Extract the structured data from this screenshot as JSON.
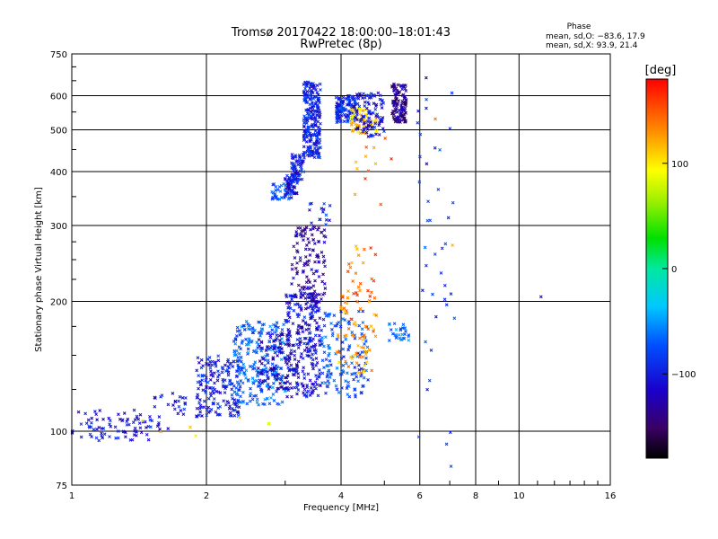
{
  "chart_data": {
    "type": "scatter",
    "title": "Tromsø 20170422 18:00:00–18:01:43",
    "subtitle": "RwPretec (8p)",
    "xlabel": "Frequency [MHz]",
    "ylabel": "Stationary phase Virtual Height [km]",
    "x_scale": "log",
    "y_scale": "log",
    "xlim": [
      1,
      16
    ],
    "ylim": [
      75,
      750
    ],
    "x_ticks": [
      1,
      2,
      4,
      6,
      8,
      10,
      16
    ],
    "x_tick_labels": [
      "1",
      "2",
      "4",
      "6",
      "8",
      "10",
      "16"
    ],
    "y_ticks": [
      75,
      100,
      200,
      300,
      400,
      500,
      600,
      750
    ],
    "y_tick_labels": [
      "75",
      "100",
      "200",
      "300",
      "400",
      "500",
      "600",
      "750"
    ],
    "grid": true,
    "colorbar": {
      "label": "[deg]",
      "range": [
        -180,
        180
      ],
      "ticks": [
        100,
        0,
        -100
      ],
      "tick_labels": [
        "100",
        "0",
        "−100"
      ]
    },
    "phase_info": {
      "header": "Phase",
      "line1": "mean, sd,O: −83.6, 17.9",
      "line2": "mean, sd,X:  93.9, 21.4"
    },
    "clusters": [
      {
        "f": [
          1.0,
          1.5
        ],
        "h": [
          95,
          112
        ],
        "phase": -110,
        "n": 80
      },
      {
        "f": [
          1.5,
          1.8
        ],
        "h": [
          100,
          125
        ],
        "phase": -105,
        "n": 30
      },
      {
        "f": [
          1.9,
          2.4
        ],
        "h": [
          108,
          150
        ],
        "phase": -100,
        "n": 170
      },
      {
        "f": [
          2.3,
          3.0
        ],
        "h": [
          115,
          180
        ],
        "phase": -70,
        "n": 240
      },
      {
        "f": [
          2.6,
          3.1
        ],
        "h": [
          125,
          170
        ],
        "phase": -120,
        "n": 100
      },
      {
        "f": [
          3.0,
          3.6
        ],
        "h": [
          120,
          210
        ],
        "phase": -110,
        "n": 260
      },
      {
        "f": [
          3.1,
          3.7
        ],
        "h": [
          200,
          300
        ],
        "phase": -130,
        "n": 120
      },
      {
        "f": [
          3.4,
          3.8
        ],
        "h": [
          300,
          340
        ],
        "phase": -100,
        "n": 15
      },
      {
        "f": [
          3.6,
          4.6
        ],
        "h": [
          120,
          190
        ],
        "phase": -80,
        "n": 140
      },
      {
        "f": [
          3.9,
          4.8
        ],
        "h": [
          135,
          200
        ],
        "phase": 130,
        "n": 60
      },
      {
        "f": [
          4.0,
          4.8
        ],
        "h": [
          200,
          270
        ],
        "phase": 140,
        "n": 30
      },
      {
        "f": [
          5.1,
          5.7
        ],
        "h": [
          160,
          180
        ],
        "phase": -60,
        "n": 30
      },
      {
        "f": [
          2.8,
          3.1
        ],
        "h": [
          345,
          375
        ],
        "phase": -80,
        "n": 40
      },
      {
        "f": [
          3.0,
          3.2
        ],
        "h": [
          355,
          400
        ],
        "phase": -110,
        "n": 60
      },
      {
        "f": [
          3.1,
          3.3
        ],
        "h": [
          380,
          440
        ],
        "phase": -95,
        "n": 60
      },
      {
        "f": [
          3.3,
          3.6
        ],
        "h": [
          430,
          650
        ],
        "phase": -100,
        "n": 240
      },
      {
        "f": [
          3.9,
          4.3
        ],
        "h": [
          520,
          600
        ],
        "phase": -95,
        "n": 130
      },
      {
        "f": [
          4.2,
          4.8
        ],
        "h": [
          490,
          560
        ],
        "phase": 110,
        "n": 80
      },
      {
        "f": [
          4.3,
          5.0
        ],
        "h": [
          480,
          610
        ],
        "phase": -110,
        "n": 100
      },
      {
        "f": [
          5.2,
          5.6
        ],
        "h": [
          520,
          640
        ],
        "phase": -135,
        "n": 120
      },
      {
        "f": [
          5.9,
          7.2
        ],
        "h": [
          80,
          650
        ],
        "phase": -90,
        "n": 40
      },
      {
        "f": [
          4.2,
          5.2
        ],
        "h": [
          320,
          480
        ],
        "phase": 140,
        "n": 12
      },
      {
        "f": [
          1.1,
          2.8
        ],
        "h": [
          95,
          110
        ],
        "phase": 100,
        "n": 6
      }
    ],
    "isolated_points": [
      {
        "f": 11.2,
        "h": 205,
        "phase": -110
      },
      {
        "f": 6.2,
        "h": 660,
        "phase": -140
      },
      {
        "f": 6.5,
        "h": 530,
        "phase": 140
      },
      {
        "f": 7.1,
        "h": 270,
        "phase": 120
      }
    ]
  }
}
